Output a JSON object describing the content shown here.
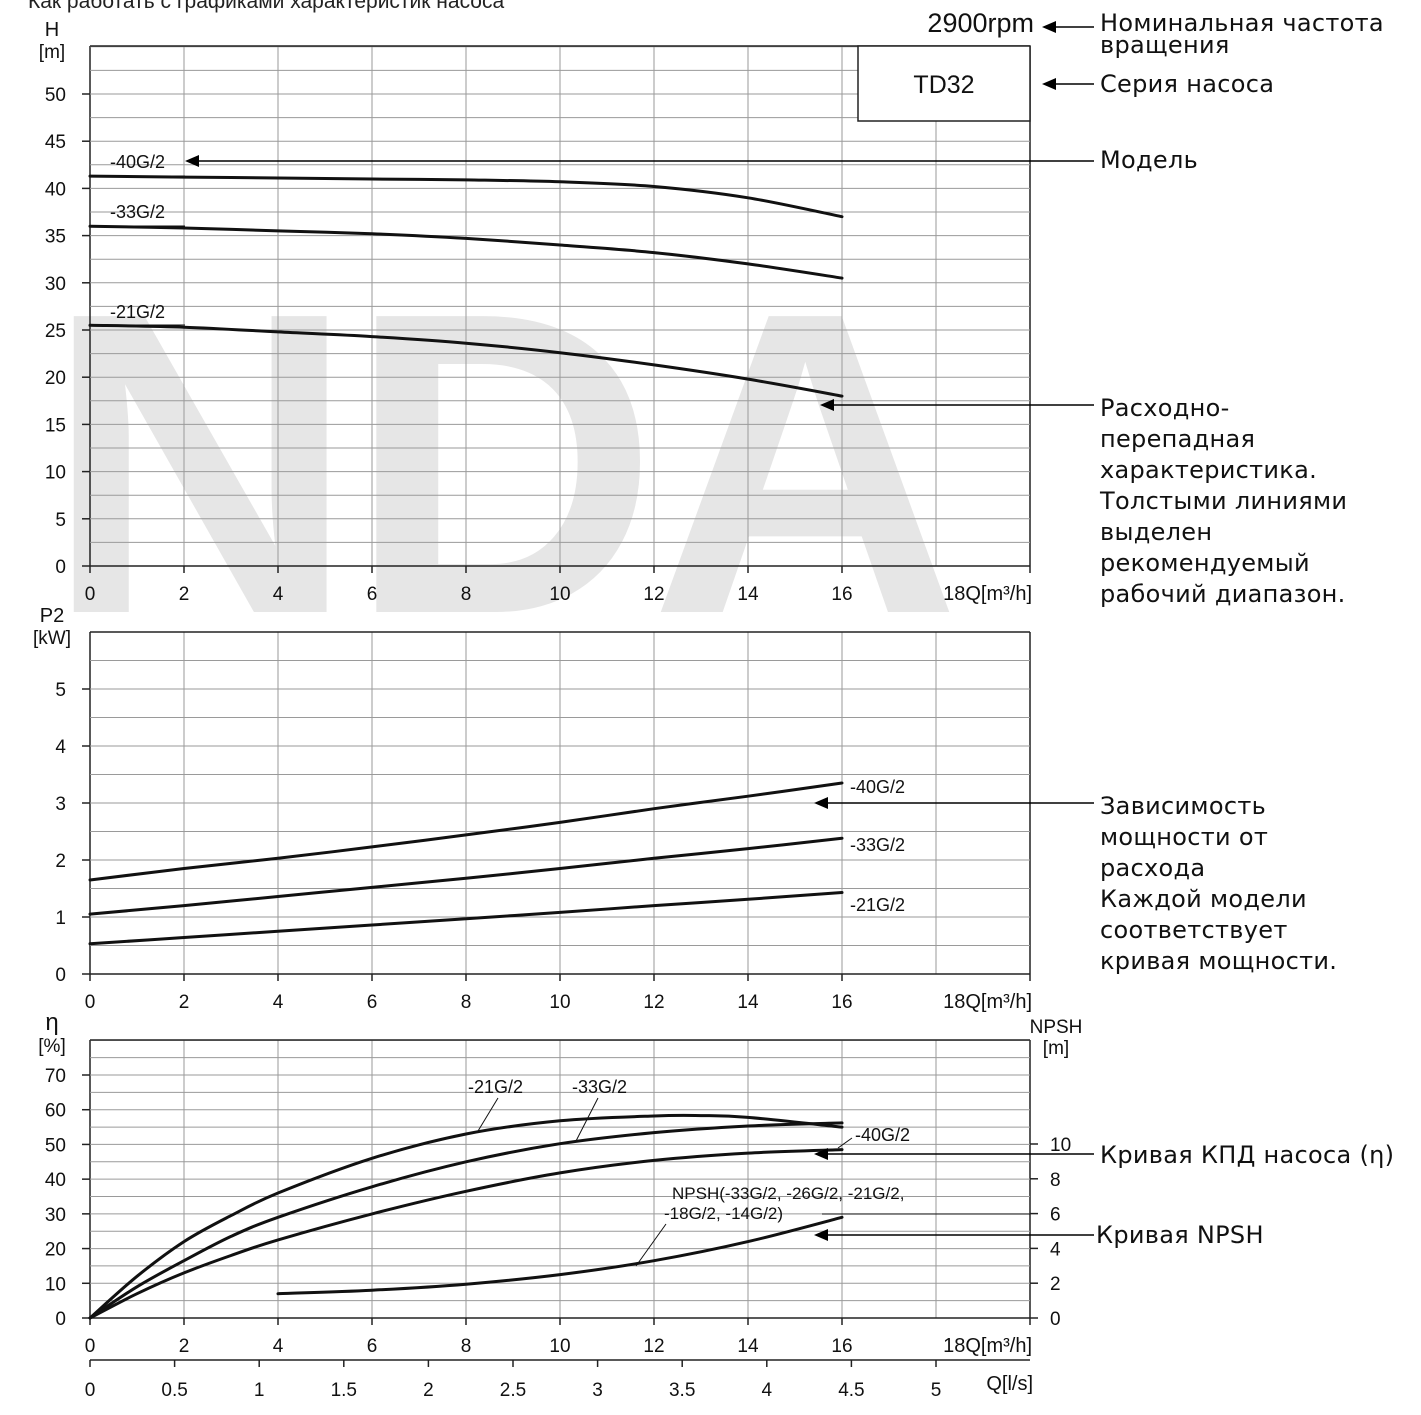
{
  "page_title": "Как работать с графиками характеристик насоса",
  "watermark_text": "NDA",
  "rated_speed": "2900rpm",
  "pump_series": "TD32",
  "annotations": {
    "speed": [
      "Номинальная частота",
      "вращения"
    ],
    "series": "Серия насоса",
    "model": "Модель",
    "head": [
      "Расходно-",
      "перепадная",
      "характеристика.",
      "Толстыми линиями",
      "выделен",
      "рекомендуемый",
      "рабочий диапазон."
    ],
    "power": [
      "Зависимость",
      "мощности от",
      "расхода",
      "Каждой модели",
      "соответствует",
      "кривая мощности."
    ],
    "efficiency": "Кривая КПД насоса (η)",
    "npsh": "Кривая NPSH"
  },
  "colors": {
    "curve": "#111111",
    "grid": "#9a9a9a",
    "watermark": "#e6e6e6",
    "text": "#111111"
  },
  "chart_data": [
    {
      "type": "line",
      "ylabel": [
        "H",
        "[m]"
      ],
      "xlabel": "18Q[m³/h]",
      "xlim": [
        0,
        20
      ],
      "ylim": [
        0,
        55
      ],
      "x_ticks": [
        0,
        2,
        4,
        6,
        8,
        10,
        12,
        14,
        16
      ],
      "y_ticks": [
        0,
        5,
        10,
        15,
        20,
        25,
        30,
        35,
        40,
        45,
        50
      ],
      "grid": true,
      "series": [
        {
          "name": "-40G/2",
          "x": [
            0,
            2,
            4,
            6,
            8,
            10,
            12,
            14,
            16
          ],
          "y": [
            41.3,
            41.2,
            41.1,
            41.0,
            40.9,
            40.7,
            40.2,
            39.0,
            37.0
          ]
        },
        {
          "name": "-33G/2",
          "x": [
            0,
            2,
            4,
            6,
            8,
            10,
            12,
            14,
            16
          ],
          "y": [
            36.0,
            35.8,
            35.5,
            35.2,
            34.7,
            34.0,
            33.2,
            32.0,
            30.5
          ]
        },
        {
          "name": "-21G/2",
          "x": [
            0,
            2,
            4,
            6,
            8,
            10,
            12,
            14,
            16
          ],
          "y": [
            25.5,
            25.3,
            24.8,
            24.3,
            23.6,
            22.6,
            21.3,
            19.8,
            18.0
          ]
        }
      ]
    },
    {
      "type": "line",
      "ylabel": [
        "P2",
        "[kW]"
      ],
      "xlabel": "18Q[m³/h]",
      "xlim": [
        0,
        20
      ],
      "ylim": [
        0,
        6
      ],
      "x_ticks": [
        0,
        2,
        4,
        6,
        8,
        10,
        12,
        14,
        16
      ],
      "y_ticks": [
        0,
        1,
        2,
        3,
        4,
        5
      ],
      "grid": true,
      "series": [
        {
          "name": "-40G/2",
          "x": [
            0,
            2,
            4,
            6,
            8,
            10,
            12,
            14,
            16
          ],
          "y": [
            1.65,
            1.85,
            2.03,
            2.23,
            2.44,
            2.66,
            2.9,
            3.12,
            3.35
          ]
        },
        {
          "name": "-33G/2",
          "x": [
            0,
            2,
            4,
            6,
            8,
            10,
            12,
            14,
            16
          ],
          "y": [
            1.05,
            1.2,
            1.36,
            1.52,
            1.68,
            1.85,
            2.03,
            2.2,
            2.38
          ]
        },
        {
          "name": "-21G/2",
          "x": [
            0,
            2,
            4,
            6,
            8,
            10,
            12,
            14,
            16
          ],
          "y": [
            0.53,
            0.64,
            0.75,
            0.86,
            0.97,
            1.08,
            1.2,
            1.31,
            1.43
          ]
        }
      ]
    },
    {
      "type": "line",
      "ylabel": [
        "η",
        "[%]"
      ],
      "y2label": [
        "NPSH",
        "[m]"
      ],
      "xlabel": "18Q[m³/h]",
      "x2label": "Q[l/s]",
      "xlim": [
        0,
        20
      ],
      "ylim": [
        0,
        80
      ],
      "y2lim": [
        0,
        16
      ],
      "x_ticks": [
        0,
        2,
        4,
        6,
        8,
        10,
        12,
        14,
        16
      ],
      "y_ticks": [
        0,
        10,
        20,
        30,
        40,
        50,
        60,
        70
      ],
      "y2_ticks": [
        0,
        2,
        4,
        6,
        8,
        10
      ],
      "x2_ticks": [
        "0",
        "0.5",
        "1",
        "1.5",
        "2",
        "2.5",
        "3",
        "3.5",
        "4",
        "4.5",
        "5"
      ],
      "grid": true,
      "series": [
        {
          "name": "-21G/2",
          "x": [
            0,
            1,
            2,
            3,
            4,
            6,
            8,
            10,
            12,
            13,
            14,
            16
          ],
          "y": [
            0,
            12,
            22,
            29.5,
            36,
            46,
            53,
            56.8,
            58.2,
            58.3,
            57.8,
            55
          ]
        },
        {
          "name": "-33G/2",
          "x": [
            0,
            1,
            2,
            3,
            4,
            6,
            8,
            10,
            12,
            14,
            16
          ],
          "y": [
            0,
            9,
            16.5,
            23.5,
            29,
            37.8,
            45,
            50.2,
            53.4,
            55.3,
            56.2
          ]
        },
        {
          "name": "-40G/2",
          "x": [
            0,
            1,
            2,
            3,
            4,
            6,
            8,
            10,
            12,
            14,
            16
          ],
          "y": [
            0,
            7,
            13,
            18,
            22.5,
            30,
            36.5,
            41.8,
            45.4,
            47.5,
            48.5
          ]
        },
        {
          "name": "NPSH(-33G/2, -26G/2, -21G/2, -18G/2, -14G/2)",
          "axis": "y2",
          "x": [
            4,
            6,
            8,
            10,
            12,
            14,
            16
          ],
          "y": [
            1.4,
            1.6,
            1.95,
            2.5,
            3.3,
            4.4,
            5.8
          ]
        }
      ]
    }
  ]
}
